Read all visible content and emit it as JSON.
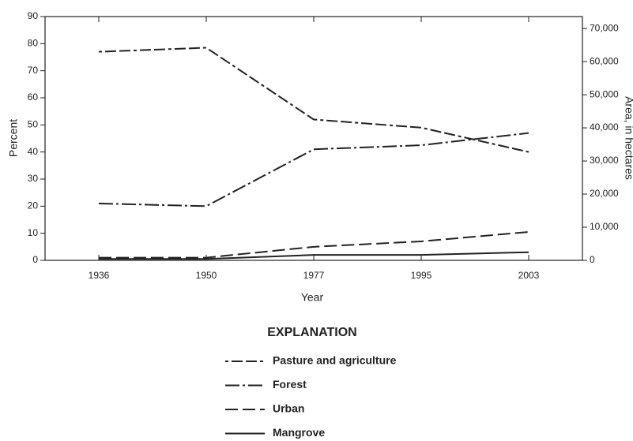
{
  "chart_data": {
    "type": "line",
    "categories": [
      "1936",
      "1950",
      "1977",
      "1995",
      "2003"
    ],
    "x_label": "Year",
    "y_label": "Percent",
    "y2_label": "Area, in hectares",
    "ylim": [
      0,
      90
    ],
    "yticks": [
      0,
      10,
      20,
      30,
      40,
      50,
      60,
      70,
      80,
      90
    ],
    "y2lim": [
      0,
      73600
    ],
    "y2ticks": [
      0,
      {
        "value": 10000,
        "label": "10,000"
      },
      {
        "value": 20000,
        "label": "20,000"
      },
      {
        "value": 30000,
        "label": "30,000"
      },
      {
        "value": 40000,
        "label": "40,000"
      },
      {
        "value": 50000,
        "label": "50,000"
      },
      {
        "value": 60000,
        "label": "60,000"
      },
      {
        "value": 70000,
        "label": "70,000"
      }
    ],
    "legend_title": "EXPLANATION",
    "series": [
      {
        "name": "Pasture and agriculture",
        "color": "#222222",
        "values": [
          77,
          78.5,
          52,
          49,
          40
        ]
      },
      {
        "name": "Forest",
        "color": "#222222",
        "values": [
          21,
          20,
          41,
          42.5,
          47
        ]
      },
      {
        "name": "Urban",
        "color": "#222222",
        "values": [
          1,
          1,
          5,
          7,
          10.5
        ]
      },
      {
        "name": "Mangrove",
        "color": "#222222",
        "values": [
          0.5,
          0.5,
          2,
          2,
          3
        ]
      }
    ]
  }
}
